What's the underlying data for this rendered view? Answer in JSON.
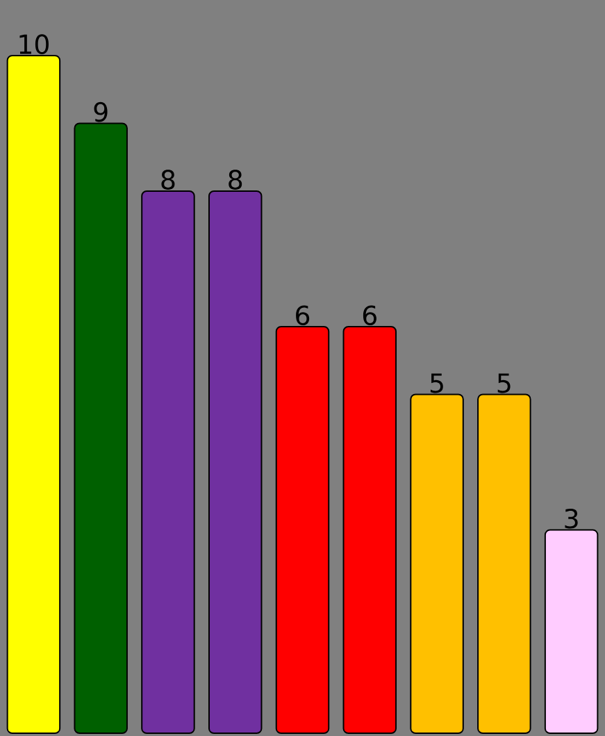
{
  "chart_data": {
    "type": "bar",
    "categories": [
      null,
      null,
      null,
      null,
      null,
      null,
      null,
      null,
      null
    ],
    "values": [
      10,
      9,
      8,
      8,
      6,
      6,
      5,
      5,
      3
    ],
    "colors": [
      "#ffff00",
      "#006000",
      "#7030a0",
      "#7030a0",
      "#ff0000",
      "#ff0000",
      "#ffc000",
      "#ffc000",
      "#ffccff"
    ],
    "data_labels": true
  }
}
